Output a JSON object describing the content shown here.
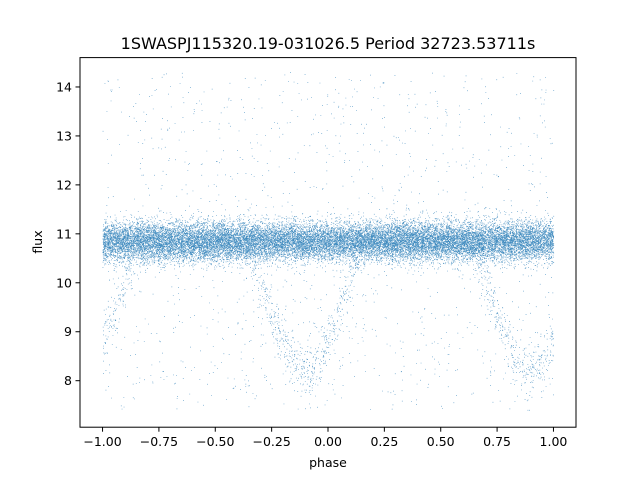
{
  "chart_data": {
    "type": "scatter",
    "title": "1SWASPJ115320.19-031026.5 Period 32723.53711s",
    "xlabel": "phase",
    "ylabel": "flux",
    "xlim": [
      -1.1,
      1.1
    ],
    "ylim": [
      7.05,
      14.6
    ],
    "grid": false,
    "legend": "none",
    "point_color": "#1f77b4",
    "x_ticks": [
      -1.0,
      -0.75,
      -0.5,
      -0.25,
      0.0,
      0.25,
      0.5,
      0.75,
      1.0
    ],
    "x_tick_labels": [
      "−1.00",
      "−0.75",
      "−0.50",
      "−0.25",
      "0.00",
      "0.25",
      "0.50",
      "0.75",
      "1.00"
    ],
    "y_ticks": [
      8,
      9,
      10,
      11,
      12,
      13,
      14
    ],
    "y_tick_labels": [
      "8",
      "9",
      "10",
      "11",
      "12",
      "13",
      "14"
    ],
    "x_range": [
      -1.0,
      1.0
    ],
    "baseline_flux": 10.85,
    "baseline_spread": 0.2,
    "eclipse_center_phases": [
      -0.1,
      0.9
    ],
    "eclipse_min_flux": 8.2,
    "eclipse_half_width": 0.25,
    "scatter_flux_range": [
      7.4,
      14.3
    ],
    "approx_point_count": 26000
  }
}
